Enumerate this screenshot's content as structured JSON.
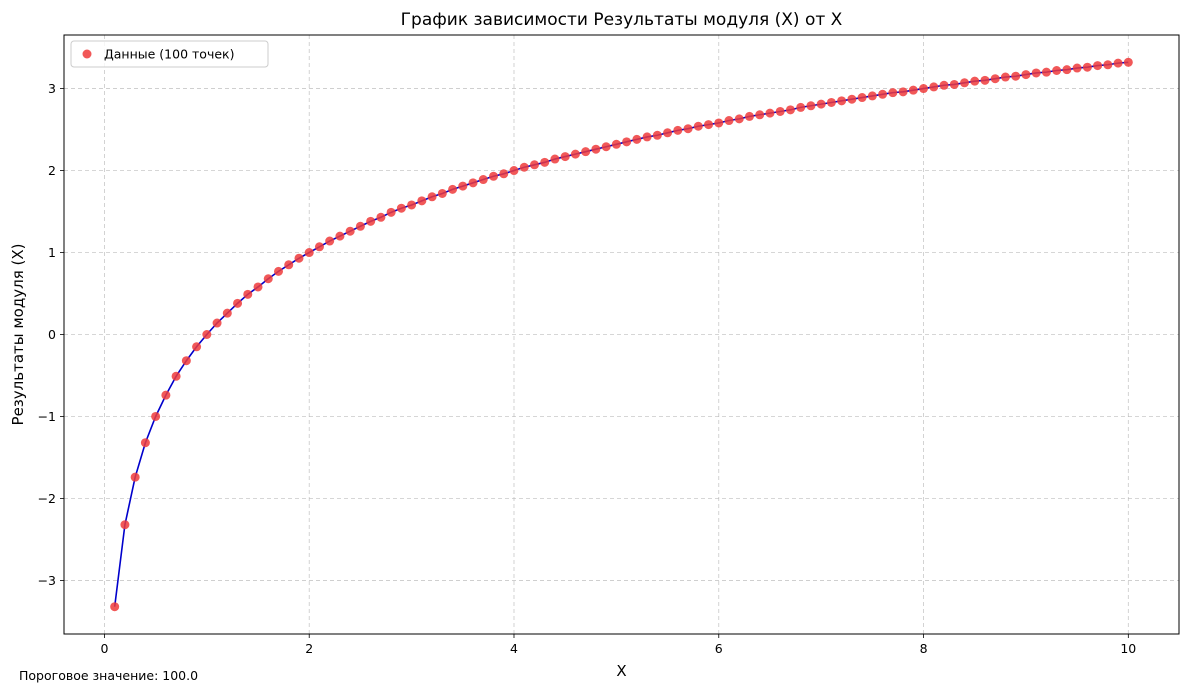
{
  "chart_data": {
    "type": "scatter",
    "title": "График зависимости Результаты модуля (X) от X",
    "xlabel": "X",
    "ylabel": "Результаты модуля (X)",
    "xlim": [
      -0.395,
      10.495
    ],
    "ylim": [
      -3.653,
      3.653
    ],
    "xticks": [
      0,
      2,
      4,
      6,
      8,
      10
    ],
    "yticks": [
      -3,
      -2,
      -1,
      0,
      1,
      2,
      3
    ],
    "xtick_labels": [
      "0",
      "2",
      "4",
      "6",
      "8",
      "10"
    ],
    "ytick_labels": [
      "−3",
      "−2",
      "−1",
      "0",
      "1",
      "2",
      "3"
    ],
    "grid": true,
    "legend_position": "top-left",
    "series": [
      {
        "name": "Данные (100 точек)",
        "kind": "scatter",
        "color": "#ef3b3b",
        "x": [
          0.1,
          0.2,
          0.3,
          0.4,
          0.5,
          0.6,
          0.7,
          0.8,
          0.9,
          1.0,
          1.1,
          1.2,
          1.3,
          1.4,
          1.5,
          1.6,
          1.7,
          1.8,
          1.9,
          2.0,
          2.1,
          2.2,
          2.3,
          2.4,
          2.5,
          2.6,
          2.7,
          2.8,
          2.9,
          3.0,
          3.1,
          3.2,
          3.3,
          3.4,
          3.5,
          3.6,
          3.7,
          3.8,
          3.9,
          4.0,
          4.1,
          4.2,
          4.3,
          4.4,
          4.5,
          4.6,
          4.7,
          4.8,
          4.9,
          5.0,
          5.1,
          5.2,
          5.3,
          5.4,
          5.5,
          5.6,
          5.7,
          5.8,
          5.9,
          6.0,
          6.1,
          6.2,
          6.3,
          6.4,
          6.5,
          6.6,
          6.7,
          6.8,
          6.9,
          7.0,
          7.1,
          7.2,
          7.3,
          7.4,
          7.5,
          7.6,
          7.7,
          7.8,
          7.9,
          8.0,
          8.1,
          8.2,
          8.3,
          8.4,
          8.5,
          8.6,
          8.7,
          8.8,
          8.9,
          9.0,
          9.1,
          9.2,
          9.3,
          9.4,
          9.5,
          9.6,
          9.7,
          9.8,
          9.9,
          10.0
        ],
        "y": [
          -3.32,
          -2.32,
          -1.74,
          -1.32,
          -1.0,
          -0.74,
          -0.51,
          -0.32,
          -0.15,
          0.0,
          0.14,
          0.26,
          0.38,
          0.49,
          0.58,
          0.68,
          0.77,
          0.85,
          0.93,
          1.0,
          1.07,
          1.14,
          1.2,
          1.26,
          1.32,
          1.38,
          1.43,
          1.49,
          1.54,
          1.58,
          1.63,
          1.68,
          1.72,
          1.77,
          1.81,
          1.85,
          1.89,
          1.93,
          1.96,
          2.0,
          2.04,
          2.07,
          2.1,
          2.14,
          2.17,
          2.2,
          2.23,
          2.26,
          2.29,
          2.32,
          2.35,
          2.38,
          2.41,
          2.43,
          2.46,
          2.49,
          2.51,
          2.54,
          2.56,
          2.58,
          2.61,
          2.63,
          2.66,
          2.68,
          2.7,
          2.72,
          2.74,
          2.77,
          2.79,
          2.81,
          2.83,
          2.85,
          2.87,
          2.89,
          2.91,
          2.93,
          2.95,
          2.96,
          2.98,
          3.0,
          3.02,
          3.04,
          3.05,
          3.07,
          3.09,
          3.1,
          3.12,
          3.14,
          3.15,
          3.17,
          3.19,
          3.2,
          3.22,
          3.23,
          3.25,
          3.26,
          3.28,
          3.29,
          3.31,
          3.32
        ]
      },
      {
        "kind": "line",
        "color": "#0000cc",
        "same_points_as": "Данные (100 точек)"
      }
    ]
  },
  "footer": {
    "threshold_text": "Пороговое значение: 100.0"
  }
}
